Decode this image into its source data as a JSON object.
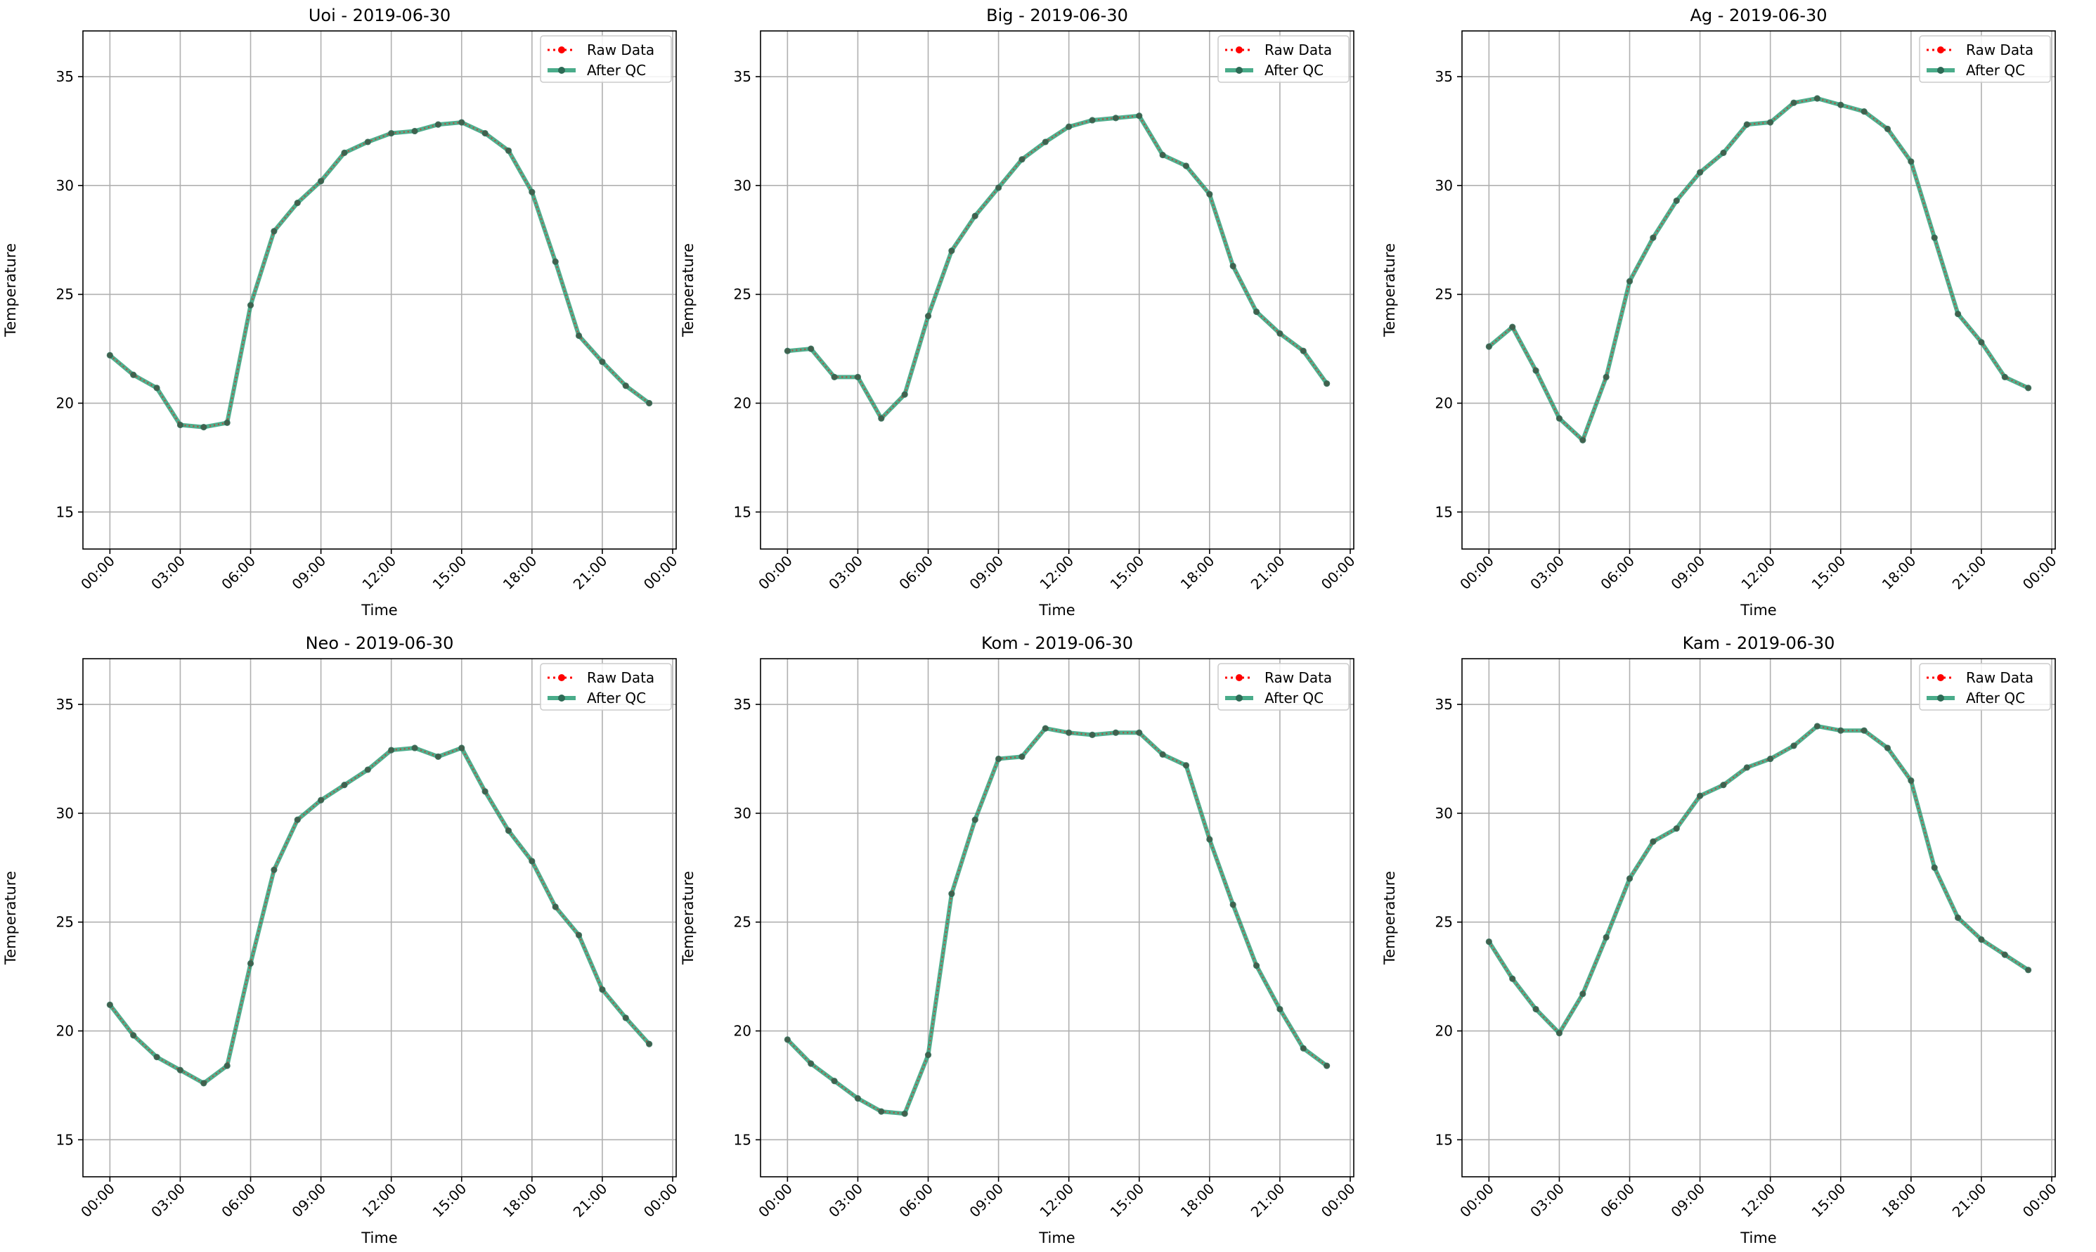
{
  "figure": {
    "background": "#ffffff"
  },
  "style": {
    "raw_color": "#ff0000",
    "qc_color": "#2a9d75",
    "qc_marker_color": "#2d6a55",
    "grid_color": "#b0b0b0"
  },
  "legend": {
    "placement": "upper right",
    "raw_label": "Raw Data",
    "qc_label": "After QC"
  },
  "chart_data": [
    {
      "type": "line",
      "title": "Uoi - 2019-06-30",
      "xlabel": "Time",
      "ylabel": "Temperature",
      "ylim": [
        13.3,
        37.1
      ],
      "yticks": [
        15,
        20,
        25,
        30,
        35
      ],
      "xlim": [
        -1.15,
        24.15
      ],
      "xticks": [
        0,
        3,
        6,
        9,
        12,
        15,
        18,
        21,
        24
      ],
      "xticklabels": [
        "00:00",
        "03:00",
        "06:00",
        "09:00",
        "12:00",
        "15:00",
        "18:00",
        "21:00",
        "00:00"
      ],
      "grid": true,
      "legend": "upper right",
      "x": [
        0,
        1,
        2,
        3,
        4,
        5,
        6,
        7,
        8,
        9,
        10,
        11,
        12,
        13,
        14,
        15,
        16,
        17,
        18,
        19,
        20,
        21,
        22,
        23
      ],
      "series": [
        {
          "name": "Raw Data",
          "values": [
            22.2,
            21.3,
            20.7,
            19.0,
            18.9,
            19.1,
            24.5,
            27.9,
            29.2,
            30.2,
            31.5,
            32.0,
            32.4,
            32.5,
            32.8,
            32.9,
            32.4,
            31.6,
            29.7,
            26.5,
            23.1,
            21.9,
            20.8,
            20.0
          ]
        },
        {
          "name": "After QC",
          "values": [
            22.2,
            21.3,
            20.7,
            19.0,
            18.9,
            19.1,
            24.5,
            27.9,
            29.2,
            30.2,
            31.5,
            32.0,
            32.4,
            32.5,
            32.8,
            32.9,
            32.4,
            31.6,
            29.7,
            26.5,
            23.1,
            21.9,
            20.8,
            20.0
          ]
        }
      ]
    },
    {
      "type": "line",
      "title": "Big - 2019-06-30",
      "xlabel": "Time",
      "ylabel": "Temperature",
      "ylim": [
        13.3,
        37.1
      ],
      "yticks": [
        15,
        20,
        25,
        30,
        35
      ],
      "xlim": [
        -1.15,
        24.15
      ],
      "xticks": [
        0,
        3,
        6,
        9,
        12,
        15,
        18,
        21,
        24
      ],
      "xticklabels": [
        "00:00",
        "03:00",
        "06:00",
        "09:00",
        "12:00",
        "15:00",
        "18:00",
        "21:00",
        "00:00"
      ],
      "grid": true,
      "legend": "upper right",
      "x": [
        0,
        1,
        2,
        3,
        4,
        5,
        6,
        7,
        8,
        9,
        10,
        11,
        12,
        13,
        14,
        15,
        16,
        17,
        18,
        19,
        20,
        21,
        22,
        23
      ],
      "series": [
        {
          "name": "Raw Data",
          "values": [
            22.4,
            22.5,
            21.2,
            21.2,
            19.3,
            20.4,
            24.0,
            27.0,
            28.6,
            29.9,
            31.2,
            32.0,
            32.7,
            33.0,
            33.1,
            33.2,
            31.4,
            30.9,
            29.6,
            26.3,
            24.2,
            23.2,
            22.4,
            20.9
          ]
        },
        {
          "name": "After QC",
          "values": [
            22.4,
            22.5,
            21.2,
            21.2,
            19.3,
            20.4,
            24.0,
            27.0,
            28.6,
            29.9,
            31.2,
            32.0,
            32.7,
            33.0,
            33.1,
            33.2,
            31.4,
            30.9,
            29.6,
            26.3,
            24.2,
            23.2,
            22.4,
            20.9
          ]
        }
      ]
    },
    {
      "type": "line",
      "title": "Ag - 2019-06-30",
      "xlabel": "Time",
      "ylabel": "Temperature",
      "ylim": [
        13.3,
        37.1
      ],
      "yticks": [
        15,
        20,
        25,
        30,
        35
      ],
      "xlim": [
        -1.15,
        24.15
      ],
      "xticks": [
        0,
        3,
        6,
        9,
        12,
        15,
        18,
        21,
        24
      ],
      "xticklabels": [
        "00:00",
        "03:00",
        "06:00",
        "09:00",
        "12:00",
        "15:00",
        "18:00",
        "21:00",
        "00:00"
      ],
      "grid": true,
      "legend": "upper right",
      "x": [
        0,
        1,
        2,
        3,
        4,
        5,
        6,
        7,
        8,
        9,
        10,
        11,
        12,
        13,
        14,
        15,
        16,
        17,
        18,
        19,
        20,
        21,
        22,
        23
      ],
      "series": [
        {
          "name": "Raw Data",
          "values": [
            22.6,
            23.5,
            21.5,
            19.3,
            18.3,
            21.2,
            25.6,
            27.6,
            29.3,
            30.6,
            31.5,
            32.8,
            32.9,
            33.8,
            34.0,
            33.7,
            33.4,
            32.6,
            31.1,
            27.6,
            24.1,
            22.8,
            21.2,
            20.7
          ]
        },
        {
          "name": "After QC",
          "values": [
            22.6,
            23.5,
            21.5,
            19.3,
            18.3,
            21.2,
            25.6,
            27.6,
            29.3,
            30.6,
            31.5,
            32.8,
            32.9,
            33.8,
            34.0,
            33.7,
            33.4,
            32.6,
            31.1,
            27.6,
            24.1,
            22.8,
            21.2,
            20.7
          ]
        }
      ]
    },
    {
      "type": "line",
      "title": "Neo - 2019-06-30",
      "xlabel": "Time",
      "ylabel": "Temperature",
      "ylim": [
        13.3,
        37.1
      ],
      "yticks": [
        15,
        20,
        25,
        30,
        35
      ],
      "xlim": [
        -1.15,
        24.15
      ],
      "xticks": [
        0,
        3,
        6,
        9,
        12,
        15,
        18,
        21,
        24
      ],
      "xticklabels": [
        "00:00",
        "03:00",
        "06:00",
        "09:00",
        "12:00",
        "15:00",
        "18:00",
        "21:00",
        "00:00"
      ],
      "grid": true,
      "legend": "upper right",
      "x": [
        0,
        1,
        2,
        3,
        4,
        5,
        6,
        7,
        8,
        9,
        10,
        11,
        12,
        13,
        14,
        15,
        16,
        17,
        18,
        19,
        20,
        21,
        22,
        23
      ],
      "series": [
        {
          "name": "Raw Data",
          "values": [
            21.2,
            19.8,
            18.8,
            18.2,
            17.6,
            18.4,
            23.1,
            27.4,
            29.7,
            30.6,
            31.3,
            32.0,
            32.9,
            33.0,
            32.6,
            33.0,
            31.0,
            29.2,
            27.8,
            25.7,
            24.4,
            21.9,
            20.6,
            19.4
          ]
        },
        {
          "name": "After QC",
          "values": [
            21.2,
            19.8,
            18.8,
            18.2,
            17.6,
            18.4,
            23.1,
            27.4,
            29.7,
            30.6,
            31.3,
            32.0,
            32.9,
            33.0,
            32.6,
            33.0,
            31.0,
            29.2,
            27.8,
            25.7,
            24.4,
            21.9,
            20.6,
            19.4
          ]
        }
      ]
    },
    {
      "type": "line",
      "title": "Kom - 2019-06-30",
      "xlabel": "Time",
      "ylabel": "Temperature",
      "ylim": [
        13.3,
        37.1
      ],
      "yticks": [
        15,
        20,
        25,
        30,
        35
      ],
      "xlim": [
        -1.15,
        24.15
      ],
      "xticks": [
        0,
        3,
        6,
        9,
        12,
        15,
        18,
        21,
        24
      ],
      "xticklabels": [
        "00:00",
        "03:00",
        "06:00",
        "09:00",
        "12:00",
        "15:00",
        "18:00",
        "21:00",
        "00:00"
      ],
      "grid": true,
      "legend": "upper right",
      "x": [
        0,
        1,
        2,
        3,
        4,
        5,
        6,
        7,
        8,
        9,
        10,
        11,
        12,
        13,
        14,
        15,
        16,
        17,
        18,
        19,
        20,
        21,
        22,
        23
      ],
      "series": [
        {
          "name": "Raw Data",
          "values": [
            19.6,
            18.5,
            17.7,
            16.9,
            16.3,
            16.2,
            18.9,
            26.3,
            29.7,
            32.5,
            32.6,
            33.9,
            33.7,
            33.6,
            33.7,
            33.7,
            32.7,
            32.2,
            28.8,
            25.8,
            23.0,
            21.0,
            19.2,
            18.4
          ]
        },
        {
          "name": "After QC",
          "values": [
            19.6,
            18.5,
            17.7,
            16.9,
            16.3,
            16.2,
            18.9,
            26.3,
            29.7,
            32.5,
            32.6,
            33.9,
            33.7,
            33.6,
            33.7,
            33.7,
            32.7,
            32.2,
            28.8,
            25.8,
            23.0,
            21.0,
            19.2,
            18.4
          ]
        }
      ]
    },
    {
      "type": "line",
      "title": "Kam - 2019-06-30",
      "xlabel": "Time",
      "ylabel": "Temperature",
      "ylim": [
        13.3,
        37.1
      ],
      "yticks": [
        15,
        20,
        25,
        30,
        35
      ],
      "xlim": [
        -1.15,
        24.15
      ],
      "xticks": [
        0,
        3,
        6,
        9,
        12,
        15,
        18,
        21,
        24
      ],
      "xticklabels": [
        "00:00",
        "03:00",
        "06:00",
        "09:00",
        "12:00",
        "15:00",
        "18:00",
        "21:00",
        "00:00"
      ],
      "grid": true,
      "legend": "upper right",
      "x": [
        0,
        1,
        2,
        3,
        4,
        5,
        6,
        7,
        8,
        9,
        10,
        11,
        12,
        13,
        14,
        15,
        16,
        17,
        18,
        19,
        20,
        21,
        22,
        23
      ],
      "series": [
        {
          "name": "Raw Data",
          "values": [
            24.1,
            22.4,
            21.0,
            19.9,
            21.7,
            24.3,
            27.0,
            28.7,
            29.3,
            30.8,
            31.3,
            32.1,
            32.5,
            33.1,
            34.0,
            33.8,
            33.8,
            33.0,
            31.5,
            27.5,
            25.2,
            24.2,
            23.5,
            22.8
          ]
        },
        {
          "name": "After QC",
          "values": [
            24.1,
            22.4,
            21.0,
            19.9,
            21.7,
            24.3,
            27.0,
            28.7,
            29.3,
            30.8,
            31.3,
            32.1,
            32.5,
            33.1,
            34.0,
            33.8,
            33.8,
            33.0,
            31.5,
            27.5,
            25.2,
            24.2,
            23.5,
            22.8
          ]
        }
      ]
    }
  ]
}
